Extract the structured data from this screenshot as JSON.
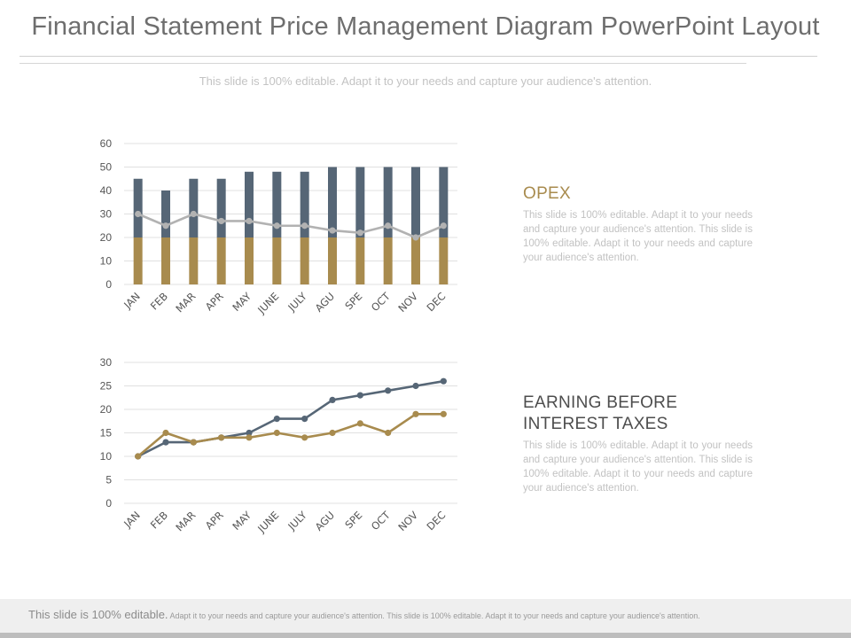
{
  "header": {
    "title": "Financial Statement Price Management Diagram PowerPoint Layout",
    "subtitle": "This slide is 100% editable. Adapt it to your needs and capture your audience's attention."
  },
  "colors": {
    "slate": "#566676",
    "gold": "#a88b4e",
    "gray_line": "#b2b2b2",
    "grid": "#e0e0e0"
  },
  "chart_data": [
    {
      "type": "bar",
      "categories": [
        "JAN",
        "FEB",
        "MAR",
        "APR",
        "MAY",
        "JUNE",
        "JULY",
        "AGU",
        "SPE",
        "OCT",
        "NOV",
        "DEC"
      ],
      "stacked": true,
      "series": [
        {
          "values": [
            20,
            20,
            20,
            20,
            20,
            20,
            20,
            20,
            20,
            20,
            20,
            20
          ],
          "color": "#a88b4e",
          "kind": "bar"
        },
        {
          "values": [
            25,
            20,
            25,
            25,
            28,
            28,
            28,
            30,
            30,
            30,
            30,
            30
          ],
          "color": "#566676",
          "kind": "bar"
        },
        {
          "values": [
            30,
            25,
            30,
            27,
            27,
            25,
            25,
            23,
            22,
            25,
            20,
            25
          ],
          "color": "#b2b2b2",
          "kind": "line"
        }
      ],
      "ylim": [
        0,
        60
      ],
      "yticks": [
        0,
        10,
        20,
        30,
        40,
        50,
        60
      ],
      "grid": true
    },
    {
      "type": "line",
      "categories": [
        "JAN",
        "FEB",
        "MAR",
        "APR",
        "MAY",
        "JUNE",
        "JULY",
        "AGU",
        "SPE",
        "OCT",
        "NOV",
        "DEC"
      ],
      "series": [
        {
          "values": [
            10,
            13,
            13,
            14,
            15,
            18,
            18,
            22,
            23,
            24,
            25,
            26
          ],
          "color": "#566676"
        },
        {
          "values": [
            10,
            15,
            13,
            14,
            14,
            15,
            14,
            15,
            17,
            15,
            19,
            19
          ],
          "color": "#a88b4e"
        }
      ],
      "ylim": [
        0,
        30
      ],
      "yticks": [
        0,
        5,
        10,
        15,
        20,
        25,
        30
      ],
      "grid": true
    }
  ],
  "opex": {
    "heading": "OPEX",
    "body": "This slide is 100% editable. Adapt it to your needs and capture your audience's attention. This slide is 100% editable. Adapt it to your needs and capture your audience's attention."
  },
  "ebit": {
    "heading_line1": "EARNING BEFORE",
    "heading_line2": "INTEREST TAXES",
    "body": "This slide is 100% editable. Adapt it to your needs and capture your audience's attention. This slide is 100% editable. Adapt it to your needs and capture your audience's attention."
  },
  "footer": {
    "lead": "This slide is 100% editable.",
    "rest": "Adapt it to your needs and capture your audience's attention. This slide is 100% editable. Adapt it to your needs and capture your audience's attention."
  }
}
